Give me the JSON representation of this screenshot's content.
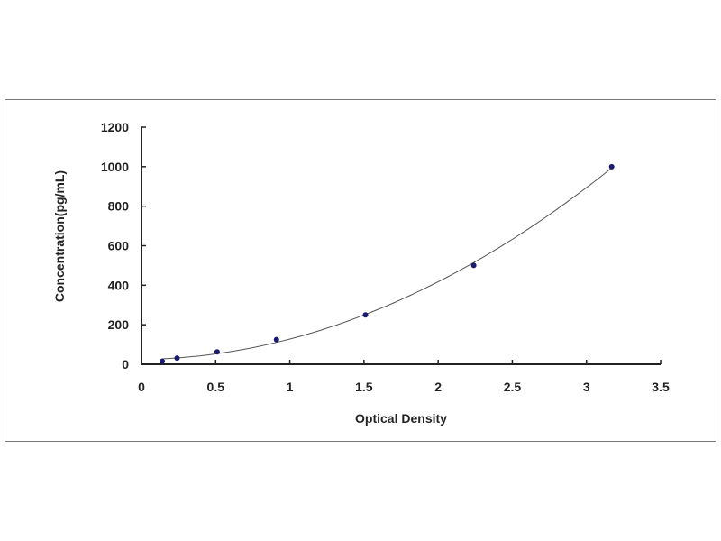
{
  "chart_data": {
    "type": "scatter",
    "title": "",
    "xlabel": "Optical Density",
    "ylabel": "Concentration(pg/mL)",
    "xlim": [
      0,
      3.5
    ],
    "ylim": [
      0,
      1200
    ],
    "x_ticks": [
      "0",
      "0.5",
      "1",
      "1.5",
      "2",
      "2.5",
      "3",
      "3.5"
    ],
    "y_ticks": [
      "0",
      "200",
      "400",
      "600",
      "800",
      "1000",
      "1200"
    ],
    "grid": false,
    "legend": "none",
    "series": [
      {
        "x": [
          0.14,
          0.24,
          0.51,
          0.91,
          1.51,
          2.24,
          3.17
        ],
        "y": [
          15.6,
          31.2,
          62.5,
          125,
          250,
          500,
          1000
        ],
        "marker_color": "#1a1a6e",
        "fit_line": true,
        "line_color": "#555555"
      }
    ]
  }
}
